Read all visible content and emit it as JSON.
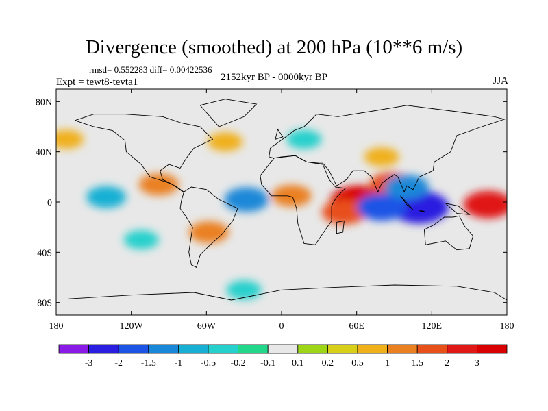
{
  "chart_data": {
    "type": "heatmap",
    "title": "Divergence (smoothed) at 200 hPa (10**6 m/s)",
    "stats_text": "rmsd= 0.552283 diff= 0.00422536",
    "left_subtitle": "Expt = tewt8-tevta1",
    "center_subtitle": "2152kyr BP - 0000kyr BP",
    "right_subtitle": "JJA",
    "x_ticks": [
      "180",
      "120W",
      "60W",
      "0",
      "60E",
      "120E",
      "180"
    ],
    "x_tick_values": [
      -180,
      -120,
      -60,
      0,
      60,
      120,
      180
    ],
    "y_ticks": [
      "80N",
      "40N",
      "0",
      "40S",
      "80S"
    ],
    "y_tick_values": [
      80,
      40,
      0,
      -40,
      -80
    ],
    "xlim": [
      -180,
      180
    ],
    "ylim": [
      -90,
      90
    ],
    "colorbar": {
      "levels": [
        "-3",
        "-2",
        "-1.5",
        "-1",
        "-0.5",
        "-0.2",
        "-0.1",
        "0.1",
        "0.2",
        "0.5",
        "1",
        "1.5",
        "2",
        "3"
      ],
      "colors": [
        "#8a1be6",
        "#2a1ee0",
        "#1c55e6",
        "#1a88d8",
        "#17b0d4",
        "#26d0cc",
        "#22d68a",
        "#e8e8e8",
        "#9cd617",
        "#d8d018",
        "#f0b01a",
        "#ea8020",
        "#e8501a",
        "#e01818",
        "#d80000"
      ]
    },
    "regions": [
      {
        "name": "indian-ocean-positive",
        "lon": 62,
        "lat": 0,
        "value": 3
      },
      {
        "name": "east-africa-positive",
        "lon": 50,
        "lat": -8,
        "value": 1.5
      },
      {
        "name": "bay-of-bengal-positive",
        "lon": 88,
        "lat": 14,
        "value": 1.5
      },
      {
        "name": "maritime-continent-negative",
        "lon": 110,
        "lat": -4,
        "value": -3
      },
      {
        "name": "indian-ocean-negative",
        "lon": 80,
        "lat": -4,
        "value": -2
      },
      {
        "name": "west-pacific-positive",
        "lon": 165,
        "lat": -2,
        "value": 2
      },
      {
        "name": "southeast-asia-negative",
        "lon": 100,
        "lat": 12,
        "value": -1.5
      },
      {
        "name": "atlantic-negative",
        "lon": -28,
        "lat": 2,
        "value": -1.5
      },
      {
        "name": "central-africa-positive",
        "lon": 8,
        "lat": 5,
        "value": 1
      },
      {
        "name": "central-america-positive",
        "lon": -98,
        "lat": 14,
        "value": 1
      },
      {
        "name": "east-pacific-negative",
        "lon": -140,
        "lat": 4,
        "value": -1
      },
      {
        "name": "south-america-positive",
        "lon": -58,
        "lat": -24,
        "value": 1
      },
      {
        "name": "south-pacific-negative",
        "lon": -112,
        "lat": -30,
        "value": -0.5
      },
      {
        "name": "north-atlantic-positive",
        "lon": -45,
        "lat": 48,
        "value": 0.5
      },
      {
        "name": "europe-negative",
        "lon": 18,
        "lat": 50,
        "value": -0.5
      },
      {
        "name": "north-pacific-positive",
        "lon": -172,
        "lat": 50,
        "value": 0.5
      },
      {
        "name": "southern-ocean-negative",
        "lon": -30,
        "lat": -70,
        "value": -0.5
      },
      {
        "name": "tibet-positive",
        "lon": 80,
        "lat": 36,
        "value": 0.5
      }
    ]
  }
}
